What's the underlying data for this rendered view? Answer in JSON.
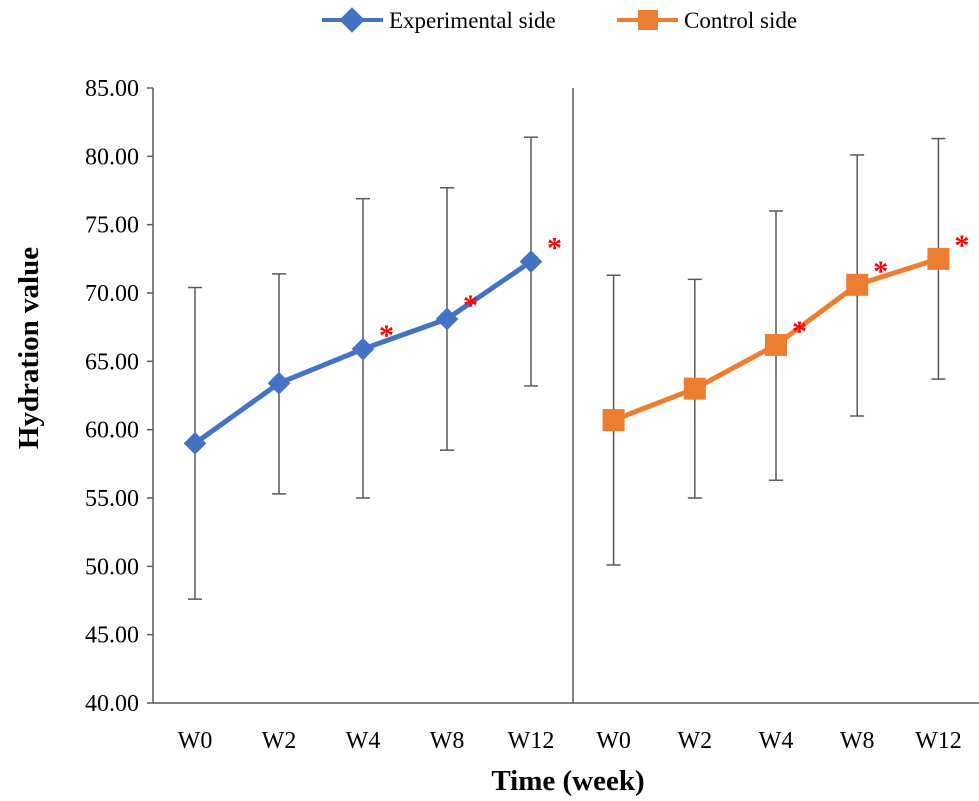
{
  "chart_data": {
    "type": "line",
    "xlabel": "Time (week)",
    "ylabel": "Hydration value",
    "ylim": [
      40,
      85
    ],
    "yticks": [
      "40.00",
      "45.00",
      "50.00",
      "55.00",
      "60.00",
      "65.00",
      "70.00",
      "75.00",
      "80.00",
      "85.00"
    ],
    "grid": false,
    "legend_position": "top",
    "panels": [
      {
        "series_name": "Experimental side",
        "color": "#4472C4",
        "marker": "diamond",
        "categories": [
          "W0",
          "W2",
          "W4",
          "W8",
          "W12"
        ],
        "values": [
          59.0,
          63.4,
          65.9,
          68.1,
          72.3
        ],
        "error_low": [
          47.6,
          55.3,
          55.0,
          58.5,
          63.2
        ],
        "error_high": [
          70.4,
          71.4,
          76.9,
          77.7,
          81.4
        ],
        "significant": [
          false,
          false,
          true,
          true,
          true
        ]
      },
      {
        "series_name": "Control side",
        "color": "#ED7D31",
        "marker": "square",
        "categories": [
          "W0",
          "W2",
          "W4",
          "W8",
          "W12"
        ],
        "values": [
          60.7,
          63.0,
          66.2,
          70.6,
          72.5
        ],
        "error_low": [
          50.1,
          55.0,
          56.3,
          61.0,
          63.7
        ],
        "error_high": [
          71.3,
          71.0,
          76.0,
          80.1,
          81.3
        ],
        "significant": [
          false,
          false,
          true,
          true,
          true
        ]
      }
    ],
    "significance_marker": "*"
  }
}
